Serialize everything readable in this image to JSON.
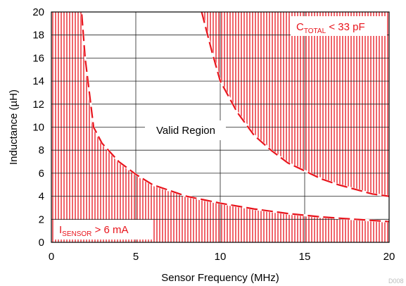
{
  "chart_data": {
    "type": "line",
    "xlabel": "Sensor Frequency (MHz)",
    "ylabel": "Inductance (µH)",
    "xlim": [
      0,
      20
    ],
    "ylim": [
      0,
      20
    ],
    "xticks": [
      0,
      5,
      10,
      15,
      20
    ],
    "yticks": [
      0,
      2,
      4,
      6,
      8,
      10,
      12,
      14,
      16,
      18,
      20
    ],
    "grid": true,
    "series": [
      {
        "name": "",
        "style": "dashed",
        "color": "#e8141c",
        "x": [
          1.8,
          2.0,
          2.5,
          3.0,
          3.5,
          4.0,
          5.0,
          6.0,
          7.0,
          8.0,
          9.0,
          10.0,
          12.0,
          14.0,
          16.0,
          18.0,
          20.0
        ],
        "y": [
          19.8,
          16.0,
          10.0,
          8.6,
          7.8,
          7.0,
          5.9,
          5.0,
          4.5,
          4.0,
          3.7,
          3.4,
          2.9,
          2.5,
          2.2,
          2.0,
          1.8
        ]
      },
      {
        "name": "",
        "style": "dashed",
        "color": "#e8141c",
        "x": [
          8.9,
          9.5,
          10.0,
          11.0,
          12.0,
          13.0,
          14.0,
          15.0,
          16.0,
          17.0,
          18.0,
          19.0,
          20.0
        ],
        "y": [
          20.0,
          16.6,
          14.0,
          11.3,
          9.3,
          8.0,
          6.9,
          6.2,
          5.5,
          5.0,
          4.6,
          4.2,
          4.0
        ]
      }
    ],
    "annotations": {
      "valid_region": "Valid Region",
      "ctotal_main": "C",
      "ctotal_sub": "TOTAL",
      "ctotal_rest": " < 33 pF",
      "isensor_main": "I",
      "isensor_sub": "SENSOR",
      "isensor_rest": " > 6 mA"
    },
    "footnote": "D008",
    "colors": {
      "hatch": "#e8141c",
      "curve": "#e8141c",
      "grid": "#222222",
      "annotation_text": "#e8141c"
    }
  }
}
